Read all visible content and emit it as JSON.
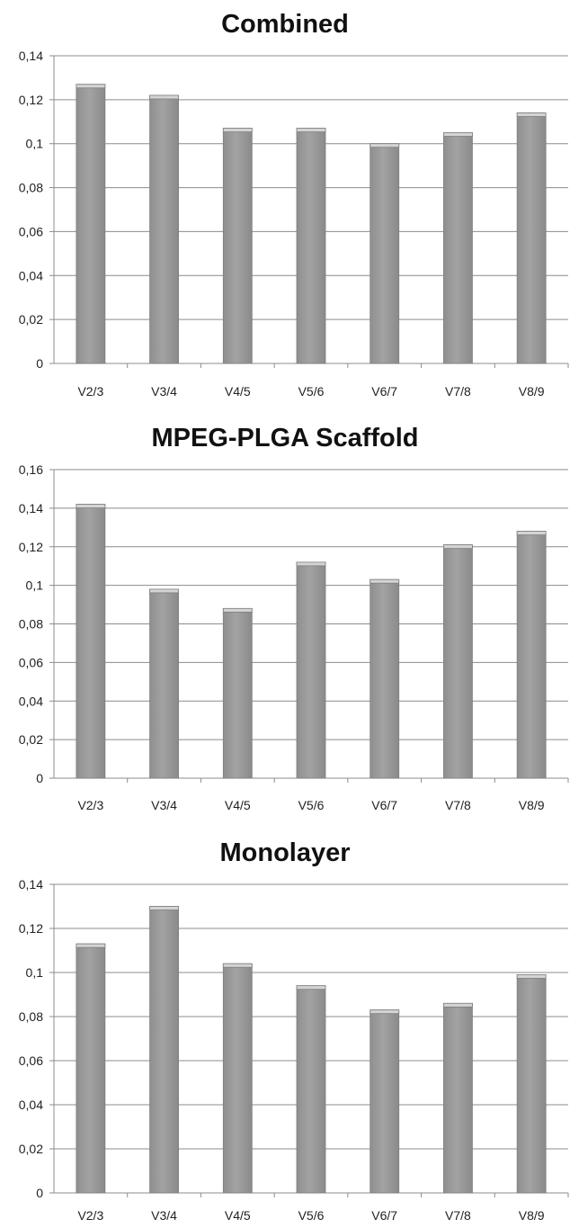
{
  "chart_data": [
    {
      "type": "bar",
      "title": "Combined",
      "categories": [
        "V2/3",
        "V3/4",
        "V4/5",
        "V5/6",
        "V6/7",
        "V7/8",
        "V8/9"
      ],
      "values": [
        0.127,
        0.122,
        0.107,
        0.107,
        0.1,
        0.105,
        0.114
      ],
      "ylim": [
        0,
        0.14
      ],
      "yticks": [
        "0",
        "0,02",
        "0,04",
        "0,06",
        "0,08",
        "0,1",
        "0,12",
        "0,14"
      ],
      "grid": true,
      "legend": "none",
      "bar_color": "#9a9a9a"
    },
    {
      "type": "bar",
      "title": "MPEG-PLGA Scaffold",
      "categories": [
        "V2/3",
        "V3/4",
        "V4/5",
        "V5/6",
        "V6/7",
        "V7/8",
        "V8/9"
      ],
      "values": [
        0.142,
        0.098,
        0.088,
        0.112,
        0.103,
        0.121,
        0.128
      ],
      "ylim": [
        0,
        0.16
      ],
      "yticks": [
        "0",
        "0,02",
        "0,04",
        "0,06",
        "0,08",
        "0,1",
        "0,12",
        "0,14",
        "0,16"
      ],
      "grid": true,
      "legend": "none",
      "bar_color": "#9a9a9a"
    },
    {
      "type": "bar",
      "title": "Monolayer",
      "categories": [
        "V2/3",
        "V3/4",
        "V4/5",
        "V5/6",
        "V6/7",
        "V7/8",
        "V8/9"
      ],
      "values": [
        0.113,
        0.13,
        0.104,
        0.094,
        0.083,
        0.086,
        0.099
      ],
      "ylim": [
        0,
        0.14
      ],
      "yticks": [
        "0",
        "0,02",
        "0,04",
        "0,06",
        "0,08",
        "0,1",
        "0,12",
        "0,14"
      ],
      "grid": true,
      "legend": "none",
      "bar_color": "#9a9a9a"
    }
  ]
}
